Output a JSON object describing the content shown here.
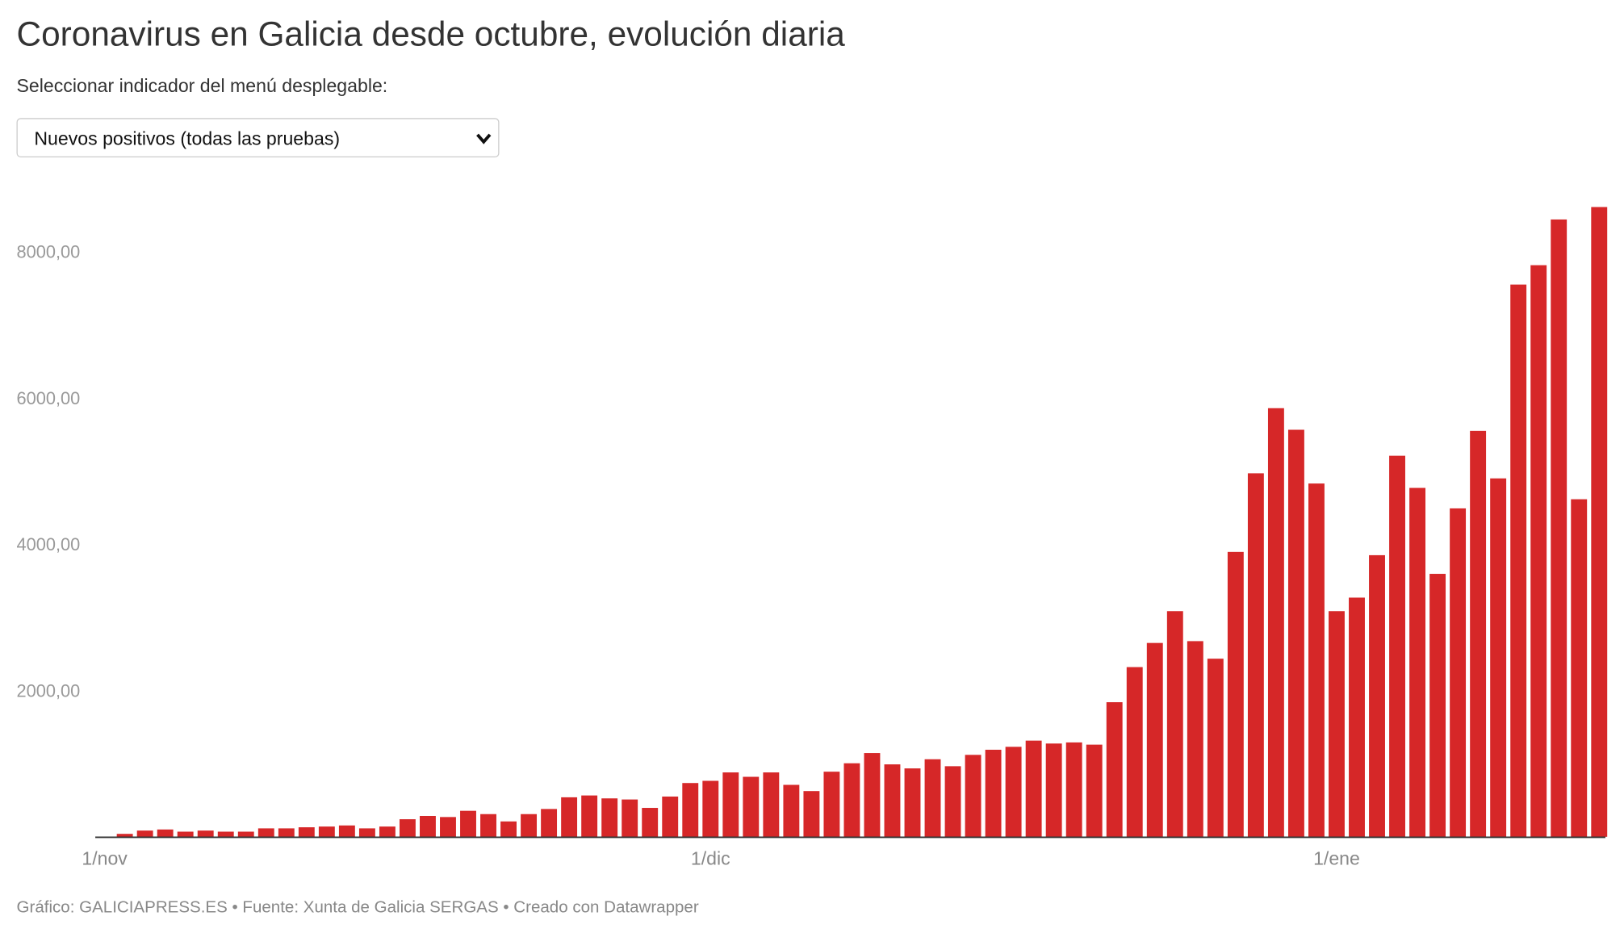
{
  "title": "Coronavirus en Galicia desde octubre, evolución diaria",
  "selector": {
    "label": "Seleccionar indicador del menú desplegable:",
    "selected": "Nuevos positivos (todas las pruebas)",
    "icon": "chevron-down-icon"
  },
  "footer": "Gráfico: GALICIAPRESS.ES • Fuente: Xunta de Galicia SERGAS • Creado con Datawrapper",
  "chart_data": {
    "type": "bar",
    "title": "Coronavirus en Galicia desde octubre, evolución diaria",
    "series_label": "Nuevos positivos (todas las pruebas)",
    "color": "#d62728",
    "x_start": "2020-11-02",
    "x_end": "2021-01-14",
    "x_ticks": [
      {
        "label": "1/nov",
        "index": -1
      },
      {
        "label": "1/dic",
        "index": 29
      },
      {
        "label": "1/ene",
        "index": 60
      }
    ],
    "y_ticks": [
      {
        "label": "2000,00",
        "value": 2000
      },
      {
        "label": "4000,00",
        "value": 4000
      },
      {
        "label": "6000,00",
        "value": 6000
      },
      {
        "label": "8000,00",
        "value": 8000
      }
    ],
    "ylim": [
      0,
      8610
    ],
    "grid": false,
    "values": [
      40,
      85,
      100,
      70,
      85,
      70,
      70,
      115,
      115,
      130,
      140,
      155,
      115,
      140,
      240,
      285,
      270,
      355,
      310,
      210,
      310,
      380,
      540,
      565,
      525,
      510,
      395,
      550,
      735,
      765,
      880,
      820,
      880,
      710,
      625,
      890,
      1005,
      1145,
      990,
      935,
      1060,
      965,
      1120,
      1190,
      1230,
      1315,
      1275,
      1290,
      1260,
      1840,
      2320,
      2650,
      3085,
      2675,
      2435,
      3895,
      4970,
      5860,
      5565,
      4830,
      3085,
      3270,
      3850,
      5210,
      4770,
      3595,
      4490,
      5550,
      4900,
      7550,
      7815,
      8440,
      4615,
      8610
    ]
  }
}
